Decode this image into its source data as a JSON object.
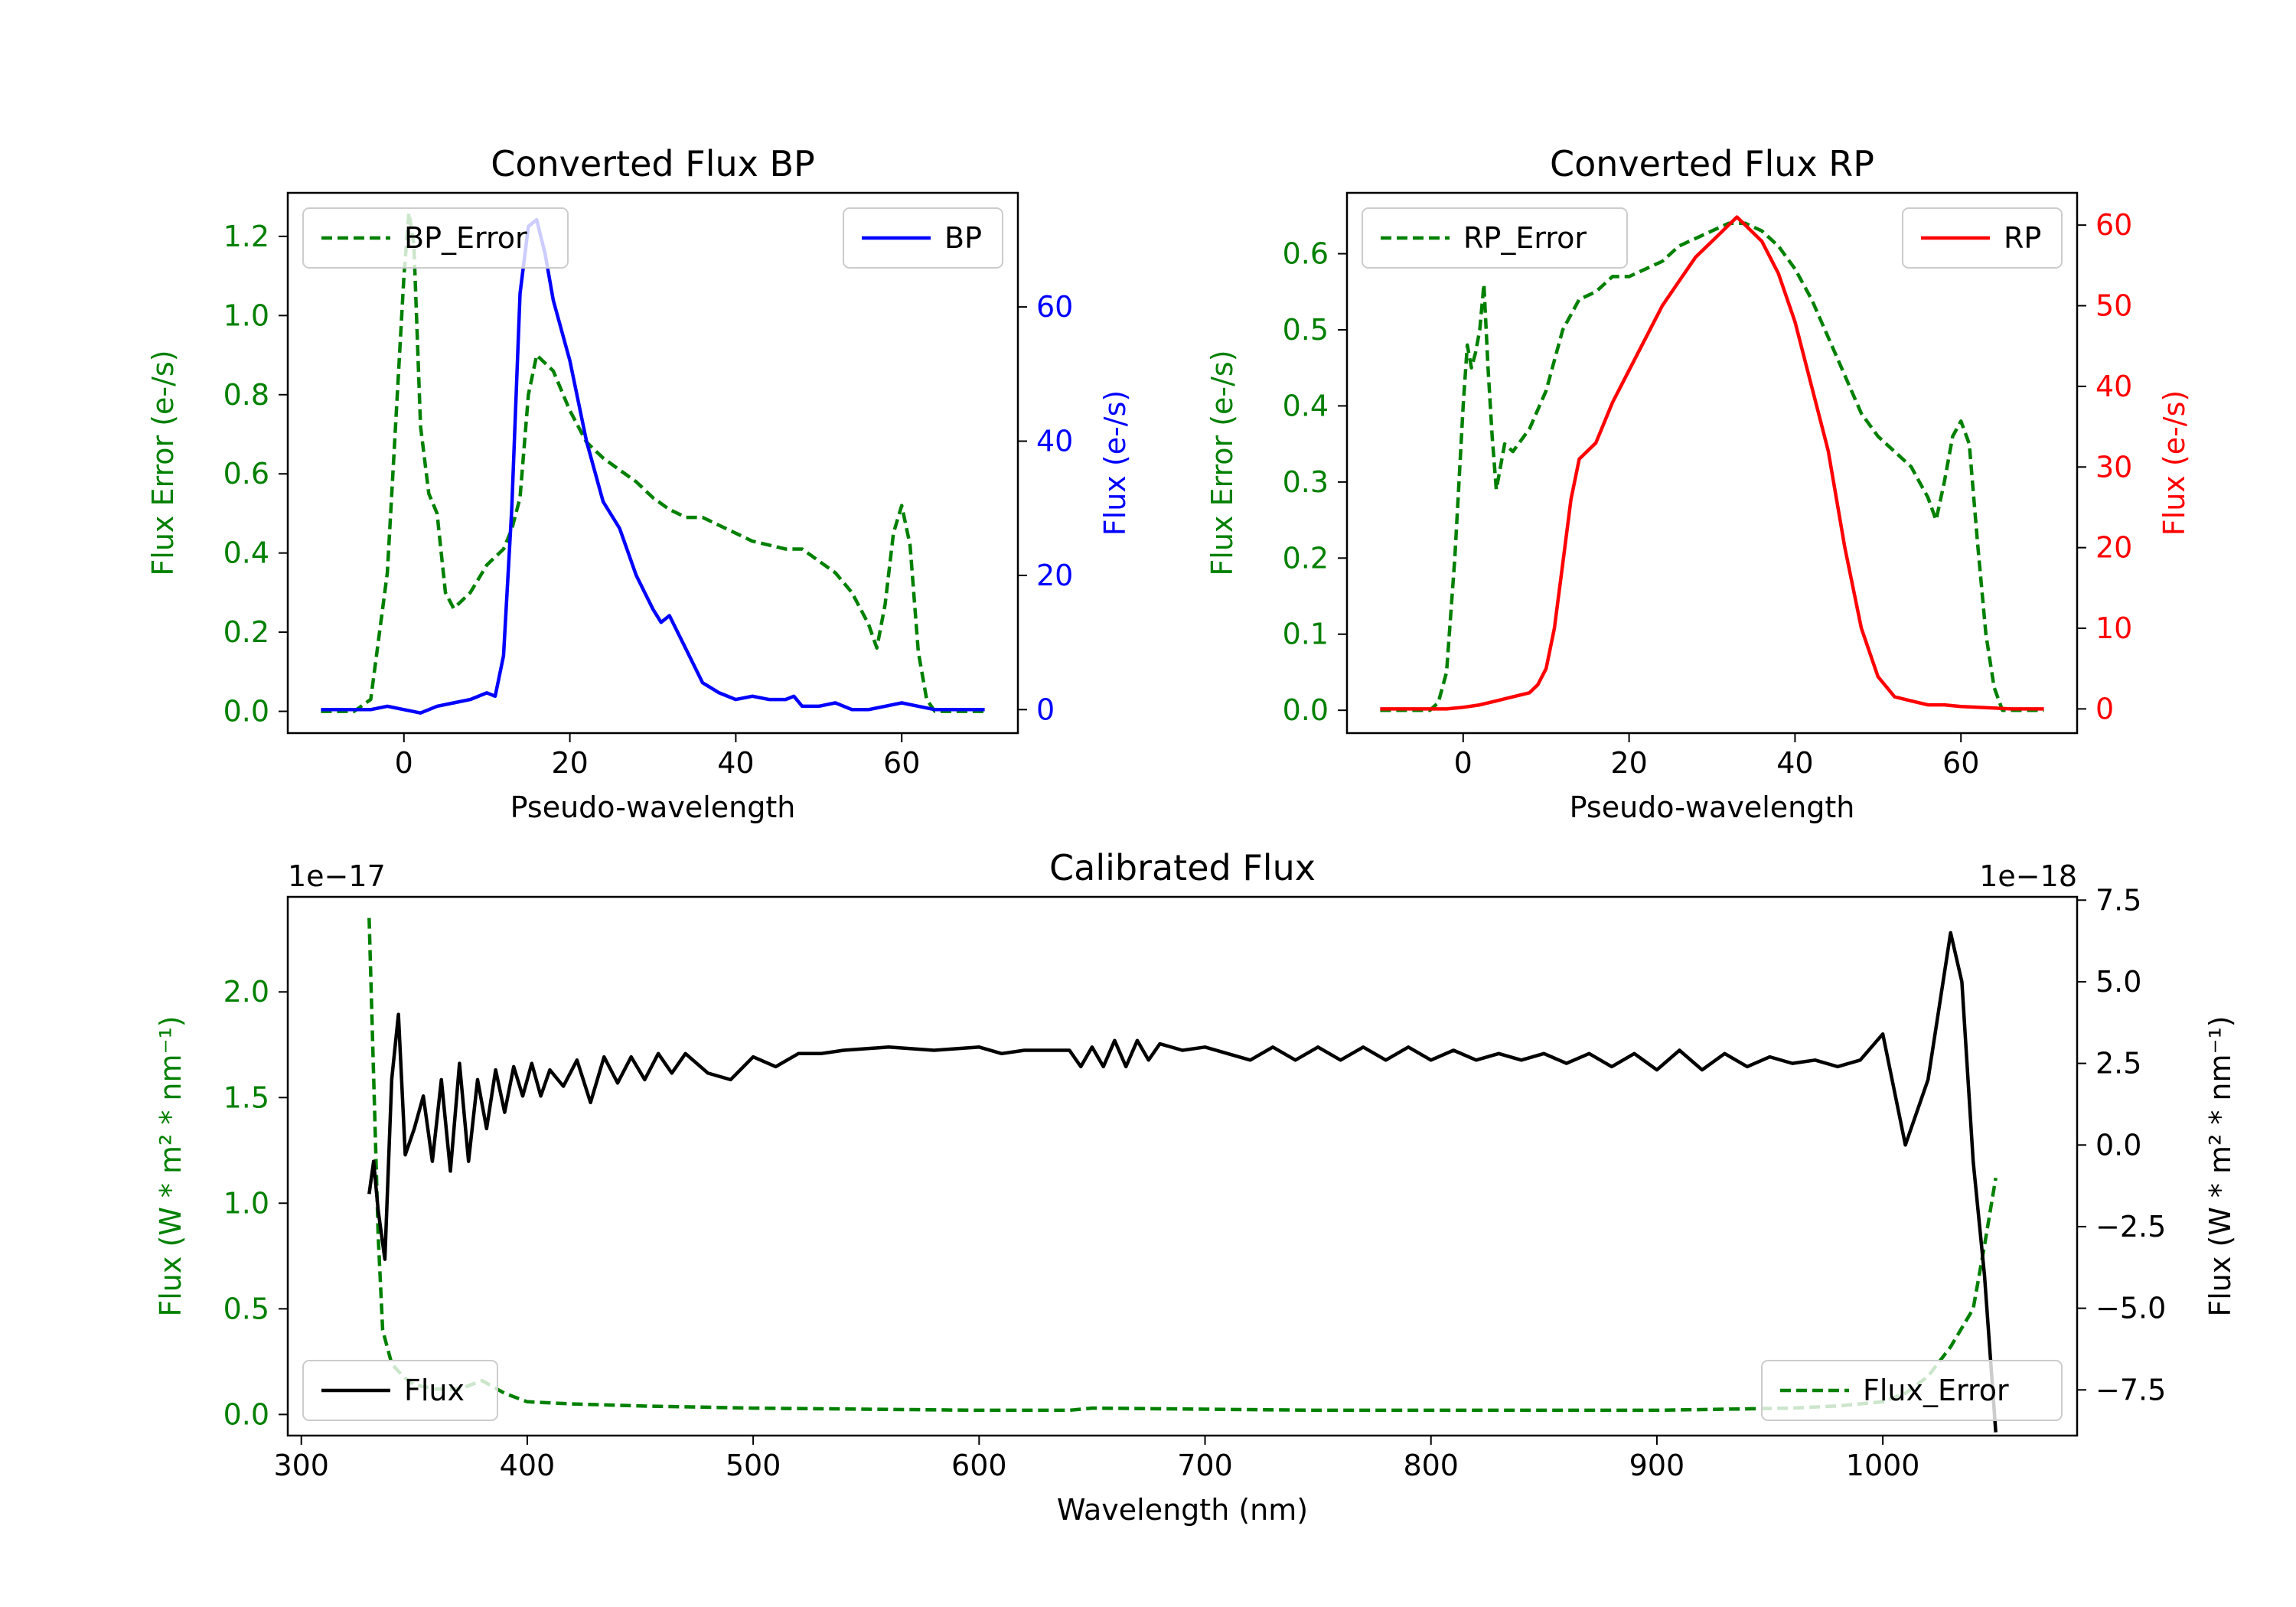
{
  "colors": {
    "green": "#008000",
    "blue": "#0000ff",
    "red": "#ff0000",
    "black": "#000000"
  },
  "chart_data": [
    {
      "type": "line",
      "title": "Converted Flux BP",
      "xlabel": "Pseudo-wavelength",
      "xlim": [
        -14,
        74
      ],
      "xticks": [
        0,
        20,
        40,
        60
      ],
      "left_axis": {
        "label": "Flux Error (e-/s)",
        "ylim": [
          -0.055,
          1.31
        ],
        "ticks": [
          0.0,
          0.2,
          0.4,
          0.6,
          0.8,
          1.0,
          1.2
        ],
        "tick_labels": [
          "0.0",
          "0.2",
          "0.4",
          "0.6",
          "0.8",
          "1.0",
          "1.2"
        ]
      },
      "right_axis": {
        "label": "Flux (e-/s)",
        "ylim": [
          -3.5,
          77
        ],
        "ticks": [
          0,
          20,
          40,
          60
        ],
        "tick_labels": [
          "0",
          "20",
          "40",
          "60"
        ]
      },
      "series": [
        {
          "name": "BP_Error",
          "axis": "left",
          "style": "dashed",
          "color": "green",
          "x": [
            -10,
            -6,
            -4,
            -2,
            0,
            0.6,
            1.2,
            2,
            3,
            4,
            5,
            6,
            8,
            10,
            12,
            13,
            14,
            15,
            16,
            18,
            20,
            22,
            24,
            26,
            28,
            30,
            32,
            34,
            36,
            38,
            40,
            42,
            44,
            46,
            48,
            50,
            52,
            54,
            56,
            57,
            58,
            59,
            60,
            61,
            62,
            63,
            64,
            66,
            68,
            70
          ],
          "values": [
            0.0,
            0.0,
            0.03,
            0.35,
            1.1,
            1.26,
            1.18,
            0.72,
            0.55,
            0.5,
            0.3,
            0.26,
            0.3,
            0.37,
            0.41,
            0.46,
            0.54,
            0.8,
            0.9,
            0.86,
            0.76,
            0.68,
            0.64,
            0.61,
            0.58,
            0.54,
            0.51,
            0.49,
            0.49,
            0.47,
            0.45,
            0.43,
            0.42,
            0.41,
            0.41,
            0.38,
            0.35,
            0.3,
            0.22,
            0.16,
            0.27,
            0.45,
            0.52,
            0.42,
            0.15,
            0.03,
            0.0,
            0.0,
            0.0,
            0.0
          ]
        },
        {
          "name": "BP",
          "axis": "right",
          "style": "solid",
          "color": "blue",
          "x": [
            -10,
            -4,
            -2,
            0,
            2,
            4,
            6,
            8,
            10,
            11,
            12,
            13,
            14,
            15,
            16,
            17,
            18,
            20,
            22,
            24,
            26,
            28,
            30,
            31,
            32,
            34,
            36,
            38,
            40,
            42,
            44,
            46,
            47,
            48,
            50,
            52,
            54,
            56,
            58,
            60,
            62,
            64,
            66,
            68,
            70
          ],
          "values": [
            0,
            0,
            0.5,
            0,
            -0.5,
            0.5,
            1,
            1.5,
            2.5,
            2,
            8,
            30,
            62,
            72,
            73,
            68,
            61,
            52,
            40,
            31,
            27,
            20,
            15,
            13,
            14,
            9,
            4,
            2.5,
            1.5,
            2,
            1.5,
            1.5,
            2,
            0.5,
            0.5,
            1,
            0,
            0,
            0.5,
            1,
            0.5,
            0,
            0,
            0,
            0
          ]
        }
      ],
      "legend": [
        {
          "label": "BP_Error",
          "placement": "upper-left"
        },
        {
          "label": "BP",
          "placement": "upper-right"
        }
      ]
    },
    {
      "type": "line",
      "title": "Converted Flux RP",
      "xlabel": "Pseudo-wavelength",
      "xlim": [
        -14,
        74
      ],
      "xticks": [
        0,
        20,
        40,
        60
      ],
      "left_axis": {
        "label": "Flux Error (e-/s)",
        "ylim": [
          -0.03,
          0.68
        ],
        "ticks": [
          0.0,
          0.1,
          0.2,
          0.3,
          0.4,
          0.5,
          0.6
        ],
        "tick_labels": [
          "0.0",
          "0.1",
          "0.2",
          "0.3",
          "0.4",
          "0.5",
          "0.6"
        ]
      },
      "right_axis": {
        "label": "Flux (e-/s)",
        "ylim": [
          -3,
          64
        ],
        "ticks": [
          0,
          10,
          20,
          30,
          40,
          50,
          60
        ],
        "tick_labels": [
          "0",
          "10",
          "20",
          "30",
          "40",
          "50",
          "60"
        ]
      },
      "series": [
        {
          "name": "RP_Error",
          "axis": "left",
          "style": "dashed",
          "color": "green",
          "x": [
            -10,
            -4,
            -3,
            -2,
            -1,
            0,
            0.5,
            1,
            1.5,
            2,
            2.5,
            3,
            3.5,
            4,
            5,
            6,
            8,
            10,
            12,
            14,
            16,
            18,
            20,
            22,
            24,
            26,
            28,
            30,
            32,
            34,
            36,
            38,
            40,
            42,
            44,
            46,
            48,
            50,
            52,
            54,
            55,
            56,
            57,
            58,
            59,
            60,
            61,
            62,
            63,
            64,
            65,
            70
          ],
          "values": [
            0.0,
            0.0,
            0.01,
            0.05,
            0.2,
            0.4,
            0.48,
            0.45,
            0.47,
            0.5,
            0.56,
            0.45,
            0.36,
            0.29,
            0.35,
            0.34,
            0.37,
            0.42,
            0.5,
            0.54,
            0.55,
            0.57,
            0.57,
            0.58,
            0.59,
            0.61,
            0.62,
            0.63,
            0.64,
            0.64,
            0.63,
            0.61,
            0.58,
            0.54,
            0.49,
            0.44,
            0.39,
            0.36,
            0.34,
            0.32,
            0.3,
            0.28,
            0.25,
            0.3,
            0.36,
            0.38,
            0.35,
            0.22,
            0.1,
            0.03,
            0.0,
            0.0
          ]
        },
        {
          "name": "RP",
          "axis": "right",
          "style": "solid",
          "color": "red",
          "x": [
            -10,
            -2,
            0,
            2,
            4,
            6,
            8,
            9,
            10,
            11,
            12,
            13,
            14,
            16,
            18,
            20,
            22,
            24,
            26,
            28,
            30,
            32,
            33,
            34,
            35,
            36,
            38,
            40,
            42,
            44,
            46,
            48,
            50,
            52,
            54,
            56,
            58,
            60,
            62,
            64,
            66,
            70
          ],
          "values": [
            0,
            0,
            0.2,
            0.5,
            1,
            1.5,
            2,
            3,
            5,
            10,
            18,
            26,
            31,
            33,
            38,
            42,
            46,
            50,
            53,
            56,
            58,
            60,
            61,
            60,
            59,
            58,
            54,
            48,
            40,
            32,
            20,
            10,
            4,
            1.5,
            1,
            0.5,
            0.5,
            0.3,
            0.2,
            0.1,
            0,
            0
          ]
        }
      ],
      "legend": [
        {
          "label": "RP_Error",
          "placement": "upper-left"
        },
        {
          "label": "RP",
          "placement": "upper-right"
        }
      ]
    },
    {
      "type": "line",
      "title": "Calibrated Flux",
      "xlabel": "Wavelength (nm)",
      "xlim": [
        294,
        1086
      ],
      "xticks": [
        300,
        400,
        500,
        600,
        700,
        800,
        900,
        1000
      ],
      "left_axis": {
        "label": "Flux (W * m² * nm⁻¹)",
        "multiplier": "1e−17",
        "ylim": [
          -0.1,
          2.45
        ],
        "ticks": [
          0.0,
          0.5,
          1.0,
          1.5,
          2.0
        ],
        "tick_labels": [
          "0.0",
          "0.5",
          "1.0",
          "1.5",
          "2.0"
        ]
      },
      "right_axis": {
        "label": "Flux (W * m² * nm⁻¹)",
        "multiplier": "1e−18",
        "ylim": [
          -8.9,
          7.6
        ],
        "ticks": [
          -7.5,
          -5.0,
          -2.5,
          0.0,
          2.5,
          5.0,
          7.5
        ],
        "tick_labels": [
          "−7.5",
          "−5.0",
          "−2.5",
          "0.0",
          "2.5",
          "5.0",
          "7.5"
        ]
      },
      "series": [
        {
          "name": "Flux_Error",
          "axis": "left",
          "style": "dashed",
          "color": "green",
          "x": [
            330,
            332,
            334,
            336,
            340,
            345,
            350,
            360,
            370,
            380,
            390,
            400,
            420,
            450,
            500,
            550,
            600,
            640,
            650,
            700,
            750,
            800,
            900,
            960,
            980,
            1000,
            1010,
            1020,
            1030,
            1040,
            1045,
            1050
          ],
          "values": [
            2.35,
            1.6,
            0.85,
            0.4,
            0.24,
            0.18,
            0.14,
            0.12,
            0.12,
            0.16,
            0.1,
            0.06,
            0.05,
            0.04,
            0.03,
            0.025,
            0.02,
            0.02,
            0.03,
            0.025,
            0.02,
            0.02,
            0.02,
            0.03,
            0.04,
            0.06,
            0.1,
            0.18,
            0.32,
            0.5,
            0.8,
            1.12
          ]
        },
        {
          "name": "Flux",
          "axis": "right",
          "style": "solid",
          "color": "black",
          "x": [
            330,
            332,
            334,
            337,
            340,
            343,
            346,
            350,
            354,
            358,
            362,
            366,
            370,
            374,
            378,
            382,
            386,
            390,
            394,
            398,
            402,
            406,
            410,
            416,
            422,
            428,
            434,
            440,
            446,
            452,
            458,
            464,
            470,
            480,
            490,
            500,
            510,
            520,
            530,
            540,
            560,
            580,
            600,
            610,
            620,
            640,
            645,
            650,
            655,
            660,
            665,
            670,
            675,
            680,
            690,
            700,
            710,
            720,
            730,
            740,
            750,
            760,
            770,
            780,
            790,
            800,
            810,
            820,
            830,
            840,
            850,
            860,
            870,
            880,
            890,
            900,
            910,
            920,
            930,
            940,
            950,
            960,
            970,
            980,
            990,
            1000,
            1010,
            1020,
            1030,
            1035,
            1040,
            1045,
            1050
          ],
          "values": [
            -1.5,
            -0.5,
            -2.0,
            -3.5,
            2.0,
            4.0,
            -0.3,
            0.5,
            1.5,
            -0.5,
            2.0,
            -0.8,
            2.5,
            -0.5,
            2.0,
            0.5,
            2.3,
            1.0,
            2.4,
            1.5,
            2.5,
            1.5,
            2.3,
            1.8,
            2.6,
            1.3,
            2.7,
            1.9,
            2.7,
            2.0,
            2.8,
            2.2,
            2.8,
            2.2,
            2.0,
            2.7,
            2.4,
            2.8,
            2.8,
            2.9,
            3.0,
            2.9,
            3.0,
            2.8,
            2.9,
            2.9,
            2.4,
            3.0,
            2.4,
            3.2,
            2.4,
            3.2,
            2.6,
            3.1,
            2.9,
            3.0,
            2.8,
            2.6,
            3.0,
            2.6,
            3.0,
            2.6,
            3.0,
            2.6,
            3.0,
            2.6,
            2.9,
            2.6,
            2.8,
            2.6,
            2.8,
            2.5,
            2.8,
            2.4,
            2.8,
            2.3,
            2.9,
            2.3,
            2.8,
            2.4,
            2.7,
            2.5,
            2.6,
            2.4,
            2.6,
            3.4,
            0.0,
            2.0,
            6.5,
            5.0,
            -0.5,
            -4.0,
            -8.8
          ]
        }
      ],
      "legend": [
        {
          "label": "Flux",
          "placement": "lower-left"
        },
        {
          "label": "Flux_Error",
          "placement": "lower-right"
        }
      ]
    }
  ]
}
